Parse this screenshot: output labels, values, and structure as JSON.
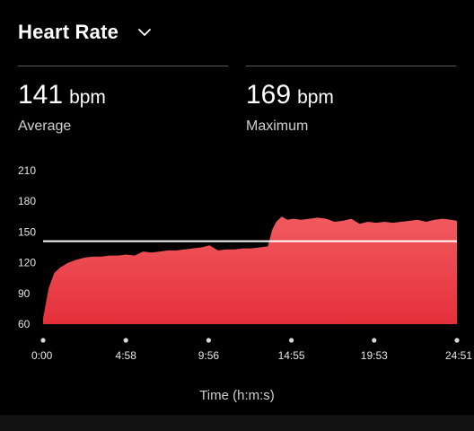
{
  "header": {
    "title": "Heart Rate",
    "dropdown_icon": "chevron-down-icon"
  },
  "stats": {
    "average": {
      "value": "141",
      "unit": "bpm",
      "label": "Average"
    },
    "maximum": {
      "value": "169",
      "unit": "bpm",
      "label": "Maximum"
    }
  },
  "colors": {
    "background": "#000000",
    "fill_top": "#f05a5f",
    "fill_bottom": "#e5303a",
    "average_line": "#ffffff"
  },
  "chart_data": {
    "type": "area",
    "xlabel": "Time (h:m:s)",
    "ylabel": "",
    "y_ticks": [
      "210",
      "180",
      "150",
      "120",
      "90",
      "60"
    ],
    "ylim": [
      60,
      210
    ],
    "x_ticks": [
      "0:00",
      "4:58",
      "9:56",
      "14:55",
      "19:53",
      "24:51"
    ],
    "xlim_seconds": [
      0,
      1491
    ],
    "grid": false,
    "reference_line": {
      "label": "Average",
      "value": 141
    },
    "x_seconds": [
      0,
      20,
      40,
      60,
      90,
      120,
      150,
      180,
      210,
      240,
      270,
      300,
      330,
      360,
      390,
      420,
      450,
      480,
      510,
      540,
      570,
      600,
      630,
      660,
      690,
      720,
      750,
      780,
      810,
      825,
      840,
      860,
      880,
      900,
      930,
      960,
      990,
      1020,
      1050,
      1080,
      1110,
      1140,
      1170,
      1200,
      1230,
      1260,
      1290,
      1320,
      1350,
      1380,
      1410,
      1440,
      1470,
      1491
    ],
    "values": [
      66,
      95,
      110,
      115,
      120,
      123,
      125,
      126,
      126,
      127,
      127,
      128,
      127,
      131,
      130,
      131,
      132,
      132,
      133,
      134,
      135,
      137,
      132,
      133,
      133,
      134,
      134,
      135,
      136,
      152,
      160,
      165,
      162,
      163,
      162,
      163,
      164,
      163,
      160,
      161,
      163,
      158,
      160,
      159,
      160,
      159,
      160,
      161,
      162,
      160,
      162,
      163,
      162,
      161
    ]
  }
}
